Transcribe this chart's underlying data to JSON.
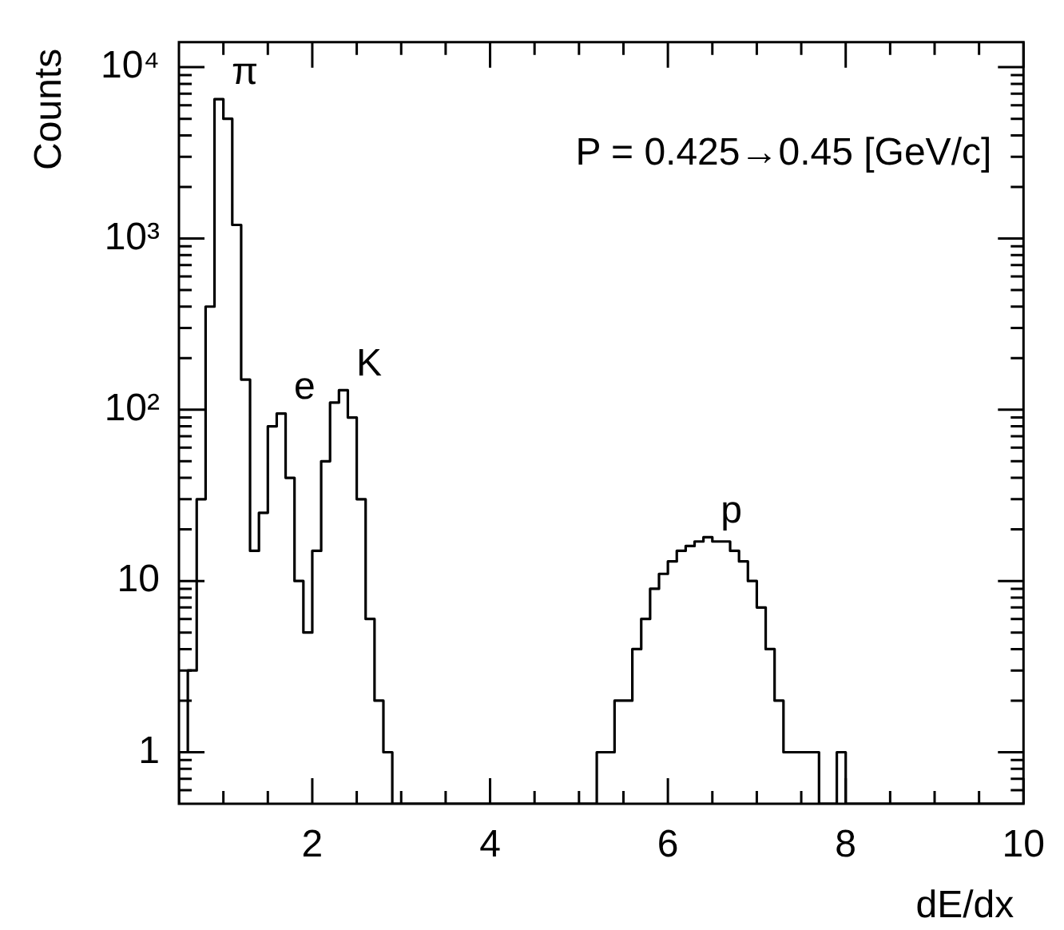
{
  "chart_data": {
    "type": "histogram",
    "xlabel": "dE/dx",
    "ylabel": "Counts",
    "color": "#000000",
    "log": true,
    "grid": false,
    "legend": false,
    "bins": [
      0.5,
      0.6,
      0.7,
      0.8,
      0.9,
      1.0,
      1.1,
      1.2,
      1.3,
      1.4,
      1.5,
      1.6,
      1.7,
      1.8,
      1.9,
      2.0,
      2.1,
      2.2,
      2.3,
      2.4,
      2.5,
      2.6,
      2.7,
      2.8,
      2.9,
      3.0,
      3.1,
      3.2,
      3.3,
      3.4,
      3.5,
      3.6,
      3.7,
      3.8,
      3.9,
      4.0,
      4.1,
      4.2,
      4.3,
      4.4,
      4.5,
      4.6,
      4.7,
      4.8,
      4.9,
      5.0,
      5.1,
      5.2,
      5.3,
      5.4,
      5.5,
      5.6,
      5.7,
      5.8,
      5.9,
      6.0,
      6.1,
      6.2,
      6.3,
      6.4,
      6.5,
      6.6,
      6.7,
      6.8,
      6.9,
      7.0,
      7.1,
      7.2,
      7.3,
      7.4,
      7.5,
      7.6,
      7.7,
      7.8,
      7.9,
      8.0,
      8.1,
      8.2,
      8.3,
      8.4,
      8.5,
      8.6,
      8.7,
      8.8,
      8.9,
      9.0,
      9.1,
      9.2,
      9.3,
      9.4,
      9.5,
      9.6,
      9.7,
      9.8,
      9.9,
      10.0
    ],
    "values": [
      1,
      3,
      30,
      400,
      6500,
      5000,
      1200,
      150,
      15,
      25,
      80,
      95,
      40,
      10,
      5,
      15,
      50,
      110,
      130,
      90,
      30,
      6,
      2,
      1,
      null,
      null,
      null,
      null,
      null,
      null,
      null,
      null,
      null,
      null,
      null,
      null,
      null,
      null,
      null,
      null,
      null,
      null,
      null,
      null,
      null,
      null,
      null,
      1,
      1,
      2,
      2,
      4,
      6,
      9,
      11,
      13,
      15,
      16,
      17,
      18,
      17,
      17,
      15,
      13,
      10,
      7,
      4,
      2,
      1,
      1,
      1,
      1,
      null,
      null,
      1,
      null,
      null,
      null,
      null,
      null,
      null,
      null,
      null,
      null,
      null,
      null,
      null,
      null,
      null,
      null,
      null,
      null,
      null,
      null,
      null
    ],
    "xlim": [
      0.5,
      10
    ],
    "xticks": [
      {
        "value": 1,
        "label": null
      },
      {
        "value": 1.5,
        "label": null
      },
      2,
      {
        "value": 2.5,
        "label": null
      },
      {
        "value": 3,
        "label": null
      },
      {
        "value": 3.5,
        "label": null
      },
      4,
      {
        "value": 4.5,
        "label": null
      },
      {
        "value": 5,
        "label": null
      },
      {
        "value": 5.5,
        "label": null
      },
      6,
      {
        "value": 6.5,
        "label": null
      },
      {
        "value": 7,
        "label": null
      },
      {
        "value": 7.5,
        "label": null
      },
      8,
      {
        "value": 8.5,
        "label": null
      },
      {
        "value": 9,
        "label": null
      },
      {
        "value": 9.5,
        "label": null
      },
      10
    ],
    "ylim": [
      0.5,
      14000
    ],
    "yticks": [
      {
        "value": 0.6,
        "label": null
      },
      {
        "value": 0.7,
        "label": null
      },
      {
        "value": 0.8,
        "label": null
      },
      {
        "value": 0.9,
        "label": null
      },
      1,
      {
        "value": 2,
        "label": null
      },
      {
        "value": 3,
        "label": null
      },
      {
        "value": 4,
        "label": null
      },
      {
        "value": 5,
        "label": null
      },
      {
        "value": 6,
        "label": null
      },
      {
        "value": 7,
        "label": null
      },
      {
        "value": 8,
        "label": null
      },
      {
        "value": 9,
        "label": null
      },
      10,
      {
        "value": 20,
        "label": null
      },
      {
        "value": 30,
        "label": null
      },
      {
        "value": 40,
        "label": null
      },
      {
        "value": 50,
        "label": null
      },
      {
        "value": 60,
        "label": null
      },
      {
        "value": 70,
        "label": null
      },
      {
        "value": 80,
        "label": null
      },
      {
        "value": 90,
        "label": null
      },
      {
        "value": 100,
        "label": "10²"
      },
      {
        "value": 200,
        "label": null
      },
      {
        "value": 300,
        "label": null
      },
      {
        "value": 400,
        "label": null
      },
      {
        "value": 500,
        "label": null
      },
      {
        "value": 600,
        "label": null
      },
      {
        "value": 700,
        "label": null
      },
      {
        "value": 800,
        "label": null
      },
      {
        "value": 900,
        "label": null
      },
      {
        "value": 1000,
        "label": "10³"
      },
      {
        "value": 2000,
        "label": null
      },
      {
        "value": 3000,
        "label": null
      },
      {
        "value": 4000,
        "label": null
      },
      {
        "value": 5000,
        "label": null
      },
      {
        "value": 6000,
        "label": null
      },
      {
        "value": 7000,
        "label": null
      },
      {
        "value": 8000,
        "label": null
      },
      {
        "value": 9000,
        "label": null
      },
      {
        "value": 10000,
        "label": "10⁴"
      }
    ],
    "annotations": [
      "P = 0.425→0.45 [GeV/c]",
      {
        "text": "π",
        "x": 0.95,
        "y": 6500
      },
      {
        "text": "e",
        "x": 1.65,
        "y": 95
      },
      {
        "text": "K",
        "x": 2.35,
        "y": 130
      },
      {
        "text": "p",
        "x": 6.45,
        "y": 18
      }
    ]
  }
}
